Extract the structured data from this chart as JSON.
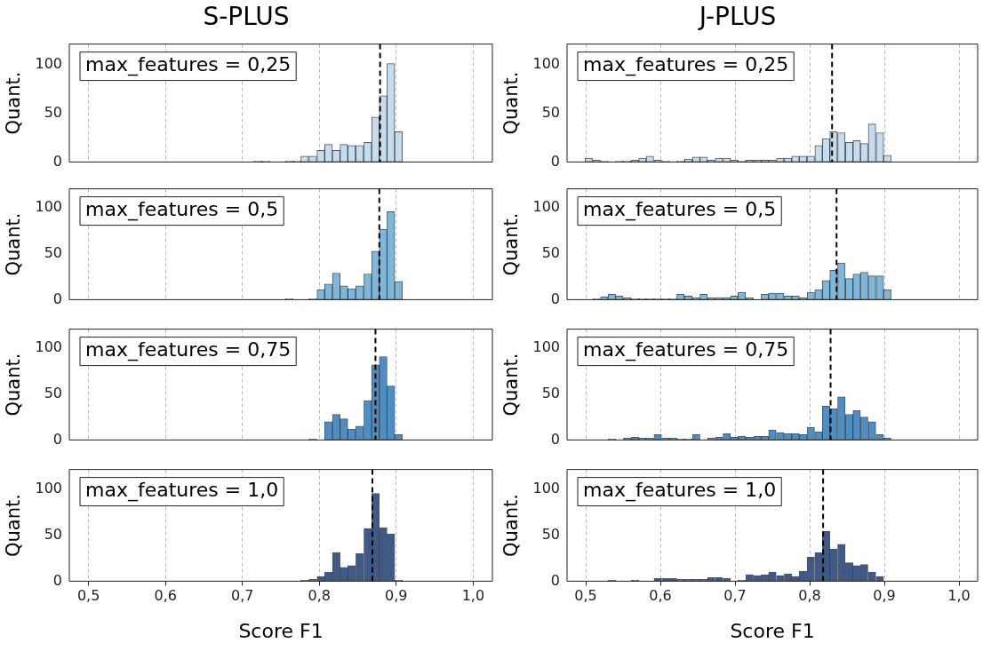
{
  "chart_data": [
    {
      "type": "histogram",
      "title": "S-PLUS",
      "ylabel": "Quant.",
      "annotations": [
        "max_features = 0,25"
      ],
      "color": "#c6dcef",
      "bins": [
        0.715,
        0.725,
        0.736,
        0.746,
        0.756,
        0.766,
        0.776,
        0.786,
        0.797,
        0.807,
        0.817,
        0.827,
        0.837,
        0.847,
        0.858,
        0.868,
        0.878,
        0.888,
        0.898,
        0.908
      ],
      "values": [
        1,
        1,
        0,
        0,
        1,
        1,
        6,
        6,
        12,
        18,
        12,
        18,
        17,
        17,
        20,
        46,
        68,
        101,
        31
      ],
      "ref_lines": [
        {
          "axis": "x",
          "value": 0.879,
          "line_style": "dashed",
          "color": "#000000"
        }
      ],
      "xlim": [
        0.475,
        1.025
      ],
      "ylim": [
        0,
        121
      ],
      "xticks": [
        {
          "value": 0.5,
          "label": null
        },
        {
          "value": 0.6,
          "label": null
        },
        {
          "value": 0.7,
          "label": null
        },
        {
          "value": 0.8,
          "label": null
        },
        {
          "value": 0.9,
          "label": null
        },
        {
          "value": 1.0,
          "label": null
        }
      ],
      "yticks": [
        0,
        50,
        100
      ],
      "grid": "x",
      "tick_labels": "y"
    },
    {
      "type": "histogram",
      "title": "J-PLUS",
      "ylabel": "Quant.",
      "annotations": [
        "max_features = 0,25"
      ],
      "color": "#c6dcef",
      "bins": [
        0.499,
        0.509,
        0.52,
        0.53,
        0.54,
        0.55,
        0.561,
        0.571,
        0.581,
        0.591,
        0.602,
        0.612,
        0.622,
        0.632,
        0.643,
        0.653,
        0.663,
        0.673,
        0.684,
        0.694,
        0.704,
        0.714,
        0.725,
        0.735,
        0.745,
        0.755,
        0.766,
        0.776,
        0.786,
        0.796,
        0.807,
        0.817,
        0.827,
        0.837,
        0.848,
        0.858,
        0.868,
        0.878,
        0.889,
        0.899,
        0.909
      ],
      "values": [
        4,
        2,
        1,
        0,
        1,
        1,
        2,
        4,
        6,
        2,
        1,
        0,
        1,
        3,
        5,
        5,
        2,
        4,
        4,
        2,
        1,
        2,
        2,
        2,
        2,
        4,
        4,
        6,
        6,
        6,
        17,
        24,
        31,
        30,
        20,
        22,
        19,
        39,
        30,
        7
      ],
      "ref_lines": [
        {
          "axis": "x",
          "value": 0.83,
          "line_style": "dashed",
          "color": "#000000"
        }
      ],
      "xlim": [
        0.475,
        1.025
      ],
      "ylim": [
        0,
        121
      ],
      "xticks": [
        {
          "value": 0.5,
          "label": null
        },
        {
          "value": 0.6,
          "label": null
        },
        {
          "value": 0.7,
          "label": null
        },
        {
          "value": 0.8,
          "label": null
        },
        {
          "value": 0.9,
          "label": null
        },
        {
          "value": 1.0,
          "label": null
        }
      ],
      "yticks": [
        0,
        50,
        100
      ],
      "grid": "x",
      "tick_labels": "y"
    },
    {
      "type": "histogram",
      "ylabel": "Quant.",
      "annotations": [
        "max_features = 0,5"
      ],
      "color": "#7db7dc",
      "bins": [
        0.756,
        0.766,
        0.776,
        0.786,
        0.797,
        0.807,
        0.817,
        0.827,
        0.837,
        0.847,
        0.858,
        0.868,
        0.878,
        0.888,
        0.898,
        0.908
      ],
      "values": [
        1,
        0,
        0,
        1,
        11,
        17,
        29,
        15,
        12,
        15,
        28,
        53,
        77,
        96,
        20
      ],
      "ref_lines": [
        {
          "axis": "x",
          "value": 0.878,
          "line_style": "dashed",
          "color": "#000000"
        }
      ],
      "xlim": [
        0.475,
        1.025
      ],
      "ylim": [
        0,
        121
      ],
      "xticks": [
        {
          "value": 0.5,
          "label": null
        },
        {
          "value": 0.6,
          "label": null
        },
        {
          "value": 0.7,
          "label": null
        },
        {
          "value": 0.8,
          "label": null
        },
        {
          "value": 0.9,
          "label": null
        },
        {
          "value": 1.0,
          "label": null
        }
      ],
      "yticks": [
        0,
        50,
        100
      ],
      "grid": "x",
      "tick_labels": "y"
    },
    {
      "type": "histogram",
      "ylabel": "Quant.",
      "annotations": [
        "max_features = 0,5"
      ],
      "color": "#7db7dc",
      "bins": [
        0.499,
        0.509,
        0.52,
        0.53,
        0.54,
        0.55,
        0.561,
        0.571,
        0.581,
        0.591,
        0.602,
        0.612,
        0.622,
        0.632,
        0.643,
        0.653,
        0.663,
        0.673,
        0.684,
        0.694,
        0.704,
        0.714,
        0.725,
        0.735,
        0.745,
        0.755,
        0.766,
        0.776,
        0.786,
        0.796,
        0.807,
        0.817,
        0.827,
        0.837,
        0.848,
        0.858,
        0.868,
        0.878,
        0.889,
        0.899,
        0.909
      ],
      "values": [
        0,
        1,
        3,
        6,
        4,
        2,
        1,
        1,
        1,
        1,
        1,
        1,
        6,
        4,
        2,
        6,
        2,
        2,
        2,
        4,
        8,
        2,
        0,
        6,
        7,
        7,
        4,
        4,
        2,
        8,
        11,
        21,
        32,
        40,
        23,
        28,
        30,
        26,
        26,
        11
      ],
      "ref_lines": [
        {
          "axis": "x",
          "value": 0.836,
          "line_style": "dashed",
          "color": "#000000"
        }
      ],
      "xlim": [
        0.475,
        1.025
      ],
      "ylim": [
        0,
        121
      ],
      "xticks": [
        {
          "value": 0.5,
          "label": null
        },
        {
          "value": 0.6,
          "label": null
        },
        {
          "value": 0.7,
          "label": null
        },
        {
          "value": 0.8,
          "label": null
        },
        {
          "value": 0.9,
          "label": null
        },
        {
          "value": 1.0,
          "label": null
        }
      ],
      "yticks": [
        0,
        50,
        100
      ],
      "grid": "x",
      "tick_labels": "y"
    },
    {
      "type": "histogram",
      "ylabel": "Quant.",
      "annotations": [
        "max_features = 0,75"
      ],
      "color": "#4c8fc7",
      "bins": [
        0.786,
        0.797,
        0.807,
        0.817,
        0.827,
        0.837,
        0.847,
        0.858,
        0.868,
        0.878,
        0.888,
        0.898,
        0.908
      ],
      "values": [
        1,
        0,
        20,
        28,
        23,
        12,
        15,
        43,
        82,
        91,
        59,
        6
      ],
      "ref_lines": [
        {
          "axis": "x",
          "value": 0.873,
          "line_style": "dashed",
          "color": "#000000"
        }
      ],
      "xlim": [
        0.475,
        1.025
      ],
      "ylim": [
        0,
        121
      ],
      "xticks": [
        {
          "value": 0.5,
          "label": null
        },
        {
          "value": 0.6,
          "label": null
        },
        {
          "value": 0.7,
          "label": null
        },
        {
          "value": 0.8,
          "label": null
        },
        {
          "value": 0.9,
          "label": null
        },
        {
          "value": 1.0,
          "label": null
        }
      ],
      "yticks": [
        0,
        50,
        100
      ],
      "grid": "x",
      "tick_labels": "y"
    },
    {
      "type": "histogram",
      "ylabel": "Quant.",
      "annotations": [
        "max_features = 0,75"
      ],
      "color": "#4c8fc7",
      "bins": [
        0.499,
        0.509,
        0.52,
        0.53,
        0.54,
        0.55,
        0.561,
        0.571,
        0.581,
        0.591,
        0.602,
        0.612,
        0.622,
        0.632,
        0.643,
        0.653,
        0.663,
        0.673,
        0.684,
        0.694,
        0.704,
        0.714,
        0.725,
        0.735,
        0.745,
        0.755,
        0.766,
        0.776,
        0.786,
        0.796,
        0.807,
        0.817,
        0.827,
        0.837,
        0.848,
        0.858,
        0.868,
        0.878,
        0.889,
        0.899,
        0.909
      ],
      "values": [
        0,
        0,
        0,
        1,
        0,
        2,
        3,
        2,
        2,
        6,
        2,
        2,
        1,
        1,
        6,
        0,
        2,
        3,
        7,
        3,
        4,
        3,
        4,
        4,
        11,
        8,
        7,
        7,
        6,
        14,
        9,
        37,
        34,
        47,
        28,
        32,
        25,
        20,
        6,
        2
      ],
      "ref_lines": [
        {
          "axis": "x",
          "value": 0.828,
          "line_style": "dashed",
          "color": "#000000"
        }
      ],
      "xlim": [
        0.475,
        1.025
      ],
      "ylim": [
        0,
        121
      ],
      "xticks": [
        {
          "value": 0.5,
          "label": null
        },
        {
          "value": 0.6,
          "label": null
        },
        {
          "value": 0.7,
          "label": null
        },
        {
          "value": 0.8,
          "label": null
        },
        {
          "value": 0.9,
          "label": null
        },
        {
          "value": 1.0,
          "label": null
        }
      ],
      "yticks": [
        0,
        50,
        100
      ],
      "grid": "x",
      "tick_labels": "y"
    },
    {
      "type": "histogram",
      "xlabel": "Score F1",
      "ylabel": "Quant.",
      "annotations": [
        "max_features = 1,0"
      ],
      "color": "#3d5a8a",
      "bins": [
        0.776,
        0.786,
        0.797,
        0.807,
        0.817,
        0.827,
        0.837,
        0.847,
        0.858,
        0.868,
        0.878,
        0.888,
        0.898,
        0.908
      ],
      "values": [
        1,
        2,
        5,
        10,
        31,
        15,
        17,
        30,
        57,
        95,
        58,
        51,
        1
      ],
      "ref_lines": [
        {
          "axis": "x",
          "value": 0.869,
          "line_style": "dashed",
          "color": "#000000"
        }
      ],
      "xlim": [
        0.475,
        1.025
      ],
      "ylim": [
        0,
        121
      ],
      "xticks": [
        {
          "value": 0.5,
          "label": "0,5"
        },
        {
          "value": 0.6,
          "label": "0,6"
        },
        {
          "value": 0.7,
          "label": "0,7"
        },
        {
          "value": 0.8,
          "label": "0,8"
        },
        {
          "value": 0.9,
          "label": "0,9"
        },
        {
          "value": 1.0,
          "label": "1,0"
        }
      ],
      "yticks": [
        0,
        50,
        100
      ],
      "grid": "x"
    },
    {
      "type": "histogram",
      "xlabel": "Score F1",
      "ylabel": "Quant.",
      "annotations": [
        "max_features = 1,0"
      ],
      "color": "#3d5a8a",
      "bins": [
        0.499,
        0.509,
        0.52,
        0.53,
        0.54,
        0.55,
        0.561,
        0.571,
        0.581,
        0.591,
        0.602,
        0.612,
        0.622,
        0.632,
        0.643,
        0.653,
        0.663,
        0.673,
        0.684,
        0.694,
        0.704,
        0.714,
        0.725,
        0.735,
        0.745,
        0.755,
        0.766,
        0.776,
        0.786,
        0.796,
        0.807,
        0.817,
        0.827,
        0.837,
        0.848,
        0.858,
        0.868,
        0.878,
        0.889,
        0.899,
        0.909
      ],
      "values": [
        0,
        0,
        0,
        1,
        0,
        0,
        1,
        0,
        0,
        3,
        3,
        3,
        2,
        2,
        2,
        2,
        4,
        4,
        3,
        0,
        1,
        7,
        6,
        7,
        10,
        6,
        8,
        5,
        11,
        26,
        31,
        54,
        35,
        40,
        20,
        17,
        18,
        10,
        5,
        0
      ],
      "ref_lines": [
        {
          "axis": "x",
          "value": 0.818,
          "line_style": "dashed",
          "color": "#000000"
        }
      ],
      "xlim": [
        0.475,
        1.025
      ],
      "ylim": [
        0,
        121
      ],
      "xticks": [
        {
          "value": 0.5,
          "label": "0,5"
        },
        {
          "value": 0.6,
          "label": "0,6"
        },
        {
          "value": 0.7,
          "label": "0,7"
        },
        {
          "value": 0.8,
          "label": "0,8"
        },
        {
          "value": 0.9,
          "label": "0,9"
        },
        {
          "value": 1.0,
          "label": "1,0"
        }
      ],
      "yticks": [
        0,
        50,
        100
      ],
      "grid": "x"
    }
  ]
}
